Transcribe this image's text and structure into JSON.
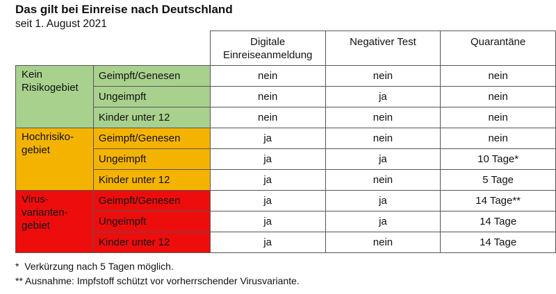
{
  "header": {
    "title": "Das gilt bei Einreise nach Deutschland",
    "subtitle": "seit 1. August 2021"
  },
  "columns": [
    "Digitale Einreiseanmeldung",
    "Negativer Test",
    "Quarantäne"
  ],
  "column_lines": [
    [
      "Digitale",
      "Einreiseanmeldung"
    ],
    [
      "Negativer Test"
    ],
    [
      "Quarantäne"
    ]
  ],
  "groups": [
    {
      "label_lines": [
        "Kein",
        "Risikogebiet"
      ],
      "color": "#a9d18e",
      "rows": [
        {
          "category": "Geimpft/Genesen",
          "values": [
            "nein",
            "nein",
            "nein"
          ]
        },
        {
          "category": "Ungeimpft",
          "values": [
            "nein",
            "ja",
            "nein"
          ]
        },
        {
          "category": "Kinder unter 12",
          "values": [
            "nein",
            "nein",
            "nein"
          ]
        }
      ]
    },
    {
      "label_lines": [
        "Hochrisiko-",
        "gebiet"
      ],
      "color": "#f5b301",
      "rows": [
        {
          "category": "Geimpft/Genesen",
          "values": [
            "ja",
            "nein",
            "nein"
          ]
        },
        {
          "category": "Ungeimpft",
          "values": [
            "ja",
            "ja",
            "10 Tage*"
          ]
        },
        {
          "category": "Kinder unter 12",
          "values": [
            "ja",
            "nein",
            "5 Tage"
          ]
        }
      ]
    },
    {
      "label_lines": [
        "Virus-",
        "varianten-",
        "gebiet"
      ],
      "color": "#ee0d0d",
      "rows": [
        {
          "category": "Geimpft/Genesen",
          "values": [
            "ja",
            "ja",
            "14 Tage**"
          ]
        },
        {
          "category": "Ungeimpft",
          "values": [
            "ja",
            "ja",
            "14 Tage"
          ]
        },
        {
          "category": "Kinder unter 12",
          "values": [
            "ja",
            "nein",
            "14 Tage"
          ]
        }
      ]
    }
  ],
  "footnotes": [
    "*  Verkürzung nach 5 Tagen möglich.",
    "** Ausnahme: Impfstoff schützt vor vorherrschender Virusvariante."
  ]
}
